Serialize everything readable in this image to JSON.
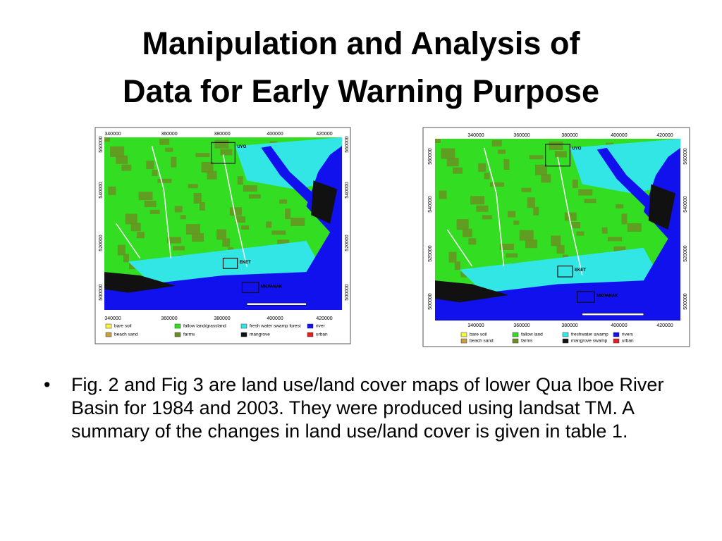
{
  "title": [
    "Manipulation and Analysis of",
    "Data for Early Warning Purpose"
  ],
  "figures": [
    {
      "x_labels": [
        "340000",
        "360000",
        "380000",
        "400000",
        "420000"
      ],
      "y_labels": [
        "560000",
        "540000",
        "520000",
        "500000"
      ],
      "places": [
        "UYO",
        "EKET",
        "MKPANAK"
      ],
      "legend": [
        {
          "label": "bare soil",
          "color": "#f5f542"
        },
        {
          "label": "fallow land/grassland",
          "color": "#33dd22"
        },
        {
          "label": "fresh water swamp forest",
          "color": "#33e6e6"
        },
        {
          "label": "river",
          "color": "#1111ee"
        },
        {
          "label": "beach sand",
          "color": "#c8a040"
        },
        {
          "label": "farms",
          "color": "#6b8e23"
        },
        {
          "label": "mangrove",
          "color": "#111111"
        },
        {
          "label": "urban",
          "color": "#e02020"
        }
      ]
    },
    {
      "x_labels": [
        "340000",
        "360000",
        "380000",
        "400000",
        "420000"
      ],
      "y_labels": [
        "560000",
        "540000",
        "520000",
        "500000"
      ],
      "places": [
        "UYO",
        "EKET",
        "MKPANAK"
      ],
      "legend": [
        {
          "label": "bare soil",
          "color": "#f5f542"
        },
        {
          "label": "fallow land",
          "color": "#33dd22"
        },
        {
          "label": "freshwater swamp",
          "color": "#33e6e6"
        },
        {
          "label": "rivers",
          "color": "#1111ee"
        },
        {
          "label": "beach sand",
          "color": "#c8a040"
        },
        {
          "label": "farms",
          "color": "#6b8e23"
        },
        {
          "label": "mangrove swamp",
          "color": "#111111"
        },
        {
          "label": "urban",
          "color": "#e02020"
        }
      ]
    }
  ],
  "bullet": "Fig. 2 and Fig 3 are land use/land cover maps of lower Qua Iboe River Basin for 1984 and 2003. They were produced using landsat TM. A summary of the changes in land use/land cover is given in table 1."
}
